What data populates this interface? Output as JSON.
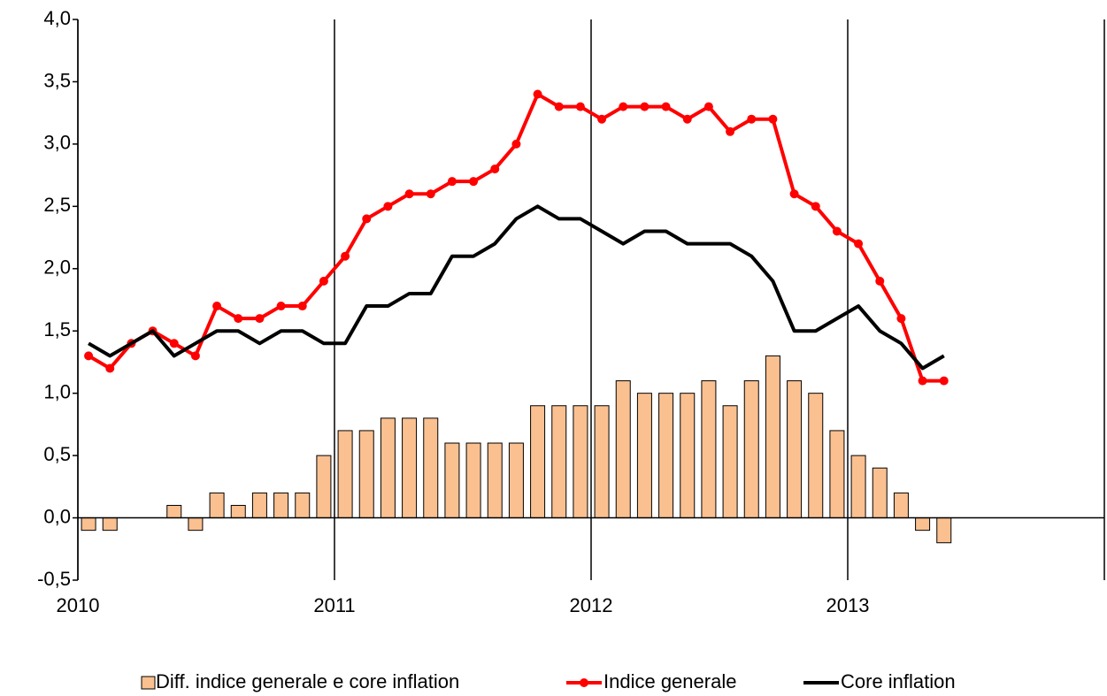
{
  "chart_data": {
    "type": "bar_line",
    "series": [
      {
        "name": "Diff. indice generale e core inflation",
        "type": "bar",
        "color": "#fac090",
        "values": [
          -0.1,
          -0.1,
          0,
          0,
          0.1,
          -0.1,
          0.2,
          0.1,
          0.2,
          0.2,
          0.2,
          0.5,
          0.7,
          0.7,
          0.8,
          0.8,
          0.8,
          0.6,
          0.6,
          0.6,
          0.6,
          0.9,
          0.9,
          0.9,
          0.9,
          1.1,
          1.0,
          1.0,
          1.0,
          1.1,
          0.9,
          1.1,
          1.3,
          1.1,
          1.0,
          0.7,
          0.5,
          0.4,
          0.2,
          -0.1,
          -0.2
        ]
      },
      {
        "name": "Indice generale",
        "type": "line",
        "markers": true,
        "color": "#ff0000",
        "values": [
          1.3,
          1.2,
          1.4,
          1.5,
          1.4,
          1.3,
          1.7,
          1.6,
          1.6,
          1.7,
          1.7,
          1.9,
          2.1,
          2.4,
          2.5,
          2.6,
          2.6,
          2.7,
          2.7,
          2.8,
          3.0,
          3.4,
          3.3,
          3.3,
          3.2,
          3.3,
          3.3,
          3.3,
          3.2,
          3.3,
          3.1,
          3.2,
          3.2,
          2.6,
          2.5,
          2.3,
          2.2,
          1.9,
          1.6,
          1.1,
          1.1
        ]
      },
      {
        "name": "Core inflation",
        "type": "line",
        "markers": false,
        "color": "#000000",
        "values": [
          1.4,
          1.3,
          1.4,
          1.5,
          1.3,
          1.4,
          1.5,
          1.5,
          1.4,
          1.5,
          1.5,
          1.4,
          1.4,
          1.7,
          1.7,
          1.8,
          1.8,
          2.1,
          2.1,
          2.2,
          2.4,
          2.5,
          2.4,
          2.4,
          2.3,
          2.2,
          2.3,
          2.3,
          2.2,
          2.2,
          2.2,
          2.1,
          1.9,
          1.5,
          1.5,
          1.6,
          1.7,
          1.5,
          1.4,
          1.2,
          1.3
        ]
      }
    ],
    "xlim": [
      2010,
      2014
    ],
    "xticks": [
      2010,
      2011,
      2012,
      2013
    ],
    "ylim": [
      -0.5,
      4.0
    ],
    "yticks": [
      {
        "value": -0.5,
        "label": "-0,5"
      },
      {
        "value": 0,
        "label": "0,0"
      },
      {
        "value": 0.5,
        "label": "0,5"
      },
      {
        "value": 1.0,
        "label": "1,0"
      },
      {
        "value": 1.5,
        "label": "1,5"
      },
      {
        "value": 2.0,
        "label": "2,0"
      },
      {
        "value": 2.5,
        "label": "2,5"
      },
      {
        "value": 3.0,
        "label": "3,0"
      },
      {
        "value": 3.5,
        "label": "3,5"
      },
      {
        "value": 4.0,
        "label": "4,0"
      }
    ],
    "grid_x": true,
    "legend": "bottom"
  }
}
